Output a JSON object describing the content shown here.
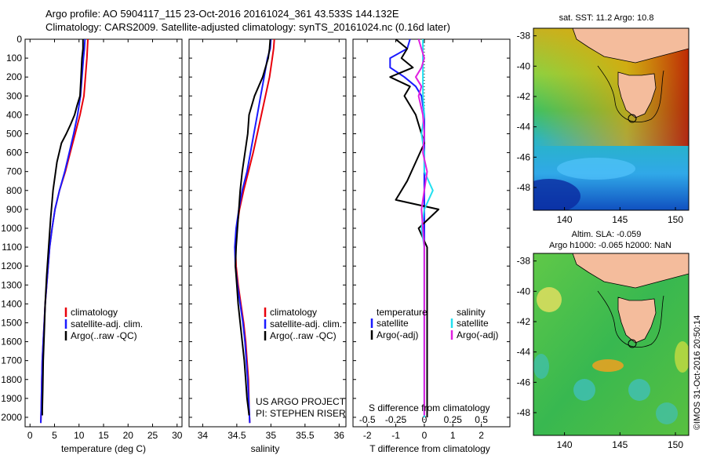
{
  "header": {
    "line1": "Argo profile: AO 5904117_115 23-Oct-2016 20161024_361 43.533S 144.132E",
    "line2": "Climatology: CARS2009. Satellite-adjusted climatology: synTS_20161024.nc (0.16d later)"
  },
  "colors": {
    "climatology": "#e8000b",
    "satellite": "#1a1aff",
    "argo": "#000000",
    "sal_satellite": "#22e0f0",
    "sal_argo": "#e020e0"
  },
  "chart_data": [
    {
      "type": "line",
      "panel": "temperature",
      "xlabel": "temperature (deg C)",
      "ylabel": "",
      "xlim": [
        -1,
        31
      ],
      "ylim": [
        2050,
        0
      ],
      "xticks": [
        "0",
        "5",
        "10",
        "15",
        "20",
        "25",
        "30"
      ],
      "yticks": [
        "0",
        "100",
        "200",
        "300",
        "400",
        "500",
        "600",
        "700",
        "800",
        "900",
        "1000",
        "1100",
        "1200",
        "1300",
        "1400",
        "1500",
        "1600",
        "1700",
        "1800",
        "1900",
        "2000"
      ],
      "legend": [
        "climatology",
        "satellite-adj. clim.",
        "Argo(..raw -QC)"
      ],
      "series": [
        {
          "name": "climatology",
          "color_key": "climatology",
          "x": [
            11.8,
            11.7,
            11.6,
            11.3,
            11.0,
            10.2,
            9.2,
            8.2,
            7.2,
            6.0,
            5.1,
            4.5,
            4.0,
            3.7,
            3.4,
            3.1,
            2.9,
            2.7,
            2.5,
            2.4,
            2.3,
            2.2
          ],
          "y": [
            0,
            50,
            100,
            200,
            300,
            400,
            500,
            600,
            700,
            800,
            900,
            1000,
            1100,
            1200,
            1300,
            1400,
            1500,
            1600,
            1700,
            1800,
            1950,
            2030
          ]
        },
        {
          "name": "satellite-adj. clim.",
          "color_key": "satellite",
          "x": [
            11.2,
            11.1,
            10.9,
            10.6,
            10.3,
            9.7,
            8.9,
            8.0,
            7.1,
            6.0,
            5.1,
            4.5,
            4.0,
            3.7,
            3.4,
            3.1,
            2.9,
            2.7,
            2.5,
            2.4,
            2.3,
            2.2
          ],
          "y": [
            0,
            50,
            100,
            200,
            300,
            400,
            500,
            600,
            700,
            800,
            900,
            1000,
            1100,
            1200,
            1300,
            1400,
            1500,
            1600,
            1700,
            1800,
            1950,
            2030
          ]
        },
        {
          "name": "Argo(..raw -QC)",
          "color_key": "argo",
          "x": [
            10.8,
            10.8,
            10.6,
            10.5,
            10.4,
            10.2,
            9.6,
            9.1,
            8.3,
            7.4,
            6.4,
            5.5,
            4.7,
            4.2,
            3.8,
            3.4,
            3.1,
            2.9,
            2.7,
            2.6,
            2.5,
            2.5
          ],
          "y": [
            0,
            50,
            100,
            150,
            200,
            300,
            350,
            400,
            450,
            500,
            550,
            650,
            800,
            950,
            1100,
            1250,
            1400,
            1550,
            1700,
            1850,
            1960,
            1990
          ]
        }
      ]
    },
    {
      "type": "line",
      "panel": "salinity",
      "xlabel": "salinity",
      "xlim": [
        33.8,
        36.1
      ],
      "ylim": [
        2050,
        0
      ],
      "xticks": [
        "34",
        "34.5",
        "35",
        "35.5",
        "36"
      ],
      "legend": [
        "climatology",
        "satellite-adj. clim.",
        "Argo(..raw -QC)"
      ],
      "annotation": [
        "US ARGO PROJECT",
        "PI: STEPHEN RISER"
      ],
      "series": [
        {
          "name": "climatology",
          "color_key": "climatology",
          "x": [
            35.05,
            35.04,
            35.02,
            34.98,
            34.92,
            34.86,
            34.8,
            34.74,
            34.67,
            34.6,
            34.54,
            34.5,
            34.48,
            34.49,
            34.52,
            34.56,
            34.6,
            34.63,
            34.65,
            34.67,
            34.68,
            34.69
          ],
          "y": [
            0,
            50,
            100,
            200,
            300,
            400,
            500,
            600,
            700,
            800,
            900,
            1000,
            1100,
            1200,
            1300,
            1400,
            1500,
            1600,
            1700,
            1800,
            1950,
            2030
          ]
        },
        {
          "name": "satellite-adj. clim.",
          "color_key": "satellite",
          "x": [
            35.0,
            34.99,
            34.95,
            34.9,
            34.85,
            34.8,
            34.75,
            34.7,
            34.65,
            34.58,
            34.53,
            34.49,
            34.47,
            34.48,
            34.51,
            34.55,
            34.59,
            34.62,
            34.64,
            34.66,
            34.68,
            34.69
          ],
          "y": [
            0,
            50,
            100,
            200,
            300,
            400,
            500,
            600,
            700,
            800,
            900,
            1000,
            1100,
            1200,
            1300,
            1400,
            1500,
            1600,
            1700,
            1800,
            1950,
            2030
          ]
        },
        {
          "name": "Argo(..raw -QC)",
          "color_key": "argo",
          "x": [
            34.99,
            34.98,
            34.96,
            34.92,
            34.88,
            34.82,
            34.76,
            34.72,
            34.68,
            34.66,
            34.62,
            34.58,
            34.55,
            34.53,
            34.51,
            34.49,
            34.48,
            34.5,
            34.52,
            34.55,
            34.58,
            34.61,
            34.63,
            34.65,
            34.67,
            34.68
          ],
          "y": [
            0,
            50,
            100,
            150,
            200,
            250,
            300,
            350,
            400,
            500,
            600,
            700,
            800,
            900,
            1000,
            1100,
            1200,
            1300,
            1400,
            1500,
            1600,
            1700,
            1800,
            1900,
            1960,
            1990
          ]
        }
      ]
    },
    {
      "type": "line",
      "panel": "difference",
      "xlabel": "T difference from climatology",
      "top_label": "S difference from climatology",
      "xlim": [
        -2.5,
        3.0
      ],
      "ylim": [
        2050,
        0
      ],
      "xticks": [
        "-2",
        "-1",
        "0",
        "1",
        "2"
      ],
      "top_ticks": [
        "-0.5",
        "-0.25",
        "0",
        "0.25",
        "0.5"
      ],
      "legend_temperature": [
        "temperature",
        "satellite",
        "Argo(-adj)"
      ],
      "legend_salinity": [
        "salinity",
        "satellite",
        "Argo(-adj)"
      ],
      "series": [
        {
          "name": "satellite",
          "color_key": "satellite",
          "x": [
            -0.5,
            -0.6,
            -1.2,
            -1.2,
            -0.7,
            -0.3,
            -0.1,
            0.0,
            0.0,
            0.0,
            0.0,
            0.0,
            0.0,
            0.0,
            0.0,
            0.0
          ],
          "y": [
            0,
            50,
            100,
            150,
            200,
            250,
            300,
            400,
            500,
            700,
            900,
            1100,
            1300,
            1500,
            1800,
            2000
          ]
        },
        {
          "name": "Argo(-adj)",
          "color_key": "argo",
          "x": [
            -1.0,
            -0.6,
            -0.8,
            -0.4,
            -1.2,
            -0.5,
            -0.7,
            -0.3,
            0.0,
            -0.3,
            -0.6,
            -1.0,
            0.5,
            -0.2,
            0.1,
            0.1,
            0.1,
            0.1,
            0.1,
            0.1
          ],
          "y": [
            0,
            50,
            100,
            150,
            200,
            250,
            300,
            400,
            550,
            650,
            750,
            850,
            900,
            1000,
            1100,
            1200,
            1400,
            1600,
            1800,
            2000
          ]
        },
        {
          "name": "satellite",
          "color_key": "sal_satellite",
          "x": [
            -0.05,
            -0.05,
            -0.05,
            0.0,
            -0.1,
            0.0,
            0.0,
            0.3,
            0.0,
            -0.1,
            0.0,
            0.0,
            0.0,
            0.0,
            0.0
          ],
          "y": [
            0,
            200,
            300,
            400,
            500,
            600,
            700,
            800,
            900,
            1000,
            1100,
            1300,
            1500,
            1800,
            2000
          ]
        },
        {
          "name": "Argo(-adj)",
          "color_key": "sal_argo",
          "x": [
            -0.2,
            0.0,
            -0.1,
            -0.3,
            -0.1,
            -0.2,
            -0.05,
            0.0,
            -0.05,
            0.1,
            -0.1,
            0.0,
            0.0,
            0.0
          ],
          "y": [
            0,
            100,
            150,
            200,
            250,
            300,
            400,
            500,
            600,
            700,
            900,
            1100,
            1500,
            1990
          ]
        }
      ]
    }
  ],
  "maps": [
    {
      "title": "sat. SST: 11.2 Argo: 10.8",
      "yticks": [
        "-38",
        "-40",
        "-42",
        "-44",
        "-46",
        "-48"
      ],
      "xticks": [
        "140",
        "145",
        "150"
      ]
    },
    {
      "title_line1": "Altim. SLA: -0.059",
      "title_line2": "Argo h1000: -0.065 h2000: NaN",
      "yticks": [
        "-38",
        "-40",
        "-42",
        "-44",
        "-46",
        "-48"
      ],
      "xticks": [
        "140",
        "145",
        "150"
      ]
    }
  ],
  "credit": "©IMOS 31-Oct-2016 20:50:14"
}
